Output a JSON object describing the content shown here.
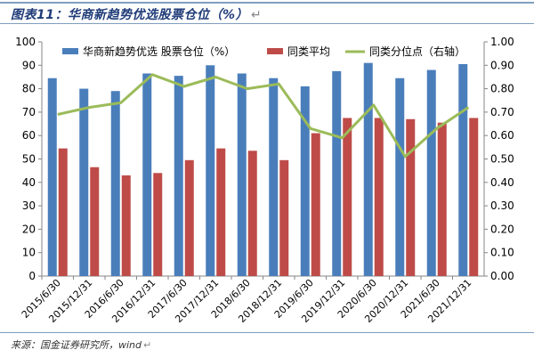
{
  "figure": {
    "title": "图表11：华商新趋势优选股票仓位（%）",
    "title_mark": "↵"
  },
  "source": {
    "text": "来源：国金证券研究所，wind",
    "mark": "↵"
  },
  "colors": {
    "bar_fund": "#4a7ebb",
    "bar_avg": "#be4b48",
    "line_pct": "#9bbb59",
    "rule": "#7f9fbf"
  },
  "chart_data": {
    "type": "bar",
    "categories": [
      "2015/6/30",
      "2015/12/31",
      "2016/6/30",
      "2016/12/31",
      "2017/6/30",
      "2017/12/31",
      "2018/6/30",
      "2018/12/31",
      "2019/6/30",
      "2019/12/31",
      "2020/6/30",
      "2020/12/31",
      "2021/6/30",
      "2021/12/31"
    ],
    "series": [
      {
        "name": "华商新趋势优选 股票仓位（%）",
        "type": "bar",
        "axis": "left",
        "color": "#4a7ebb",
        "values": [
          84.5,
          80.0,
          79.0,
          86.5,
          85.5,
          90.0,
          86.5,
          84.5,
          81.0,
          87.5,
          91.0,
          84.5,
          88.0,
          90.5
        ]
      },
      {
        "name": "同类平均",
        "type": "bar",
        "axis": "left",
        "color": "#be4b48",
        "values": [
          54.5,
          46.5,
          43.0,
          44.0,
          49.5,
          54.5,
          53.5,
          49.5,
          61.0,
          67.5,
          67.5,
          67.0,
          65.5,
          67.5
        ]
      },
      {
        "name": "同类分位点（右轴）",
        "type": "line",
        "axis": "right",
        "color": "#9bbb59",
        "values": [
          0.69,
          0.72,
          0.74,
          0.86,
          0.81,
          0.85,
          0.8,
          0.82,
          0.63,
          0.59,
          0.73,
          0.51,
          0.63,
          0.72
        ]
      }
    ],
    "y_left": {
      "min": 0,
      "max": 100,
      "ticks": [
        "0",
        "10",
        "20",
        "30",
        "40",
        "50",
        "60",
        "70",
        "80",
        "90",
        "100"
      ]
    },
    "y_right": {
      "min": 0,
      "max": 1,
      "ticks": [
        "0.00",
        "0.10",
        "0.20",
        "0.30",
        "0.40",
        "0.50",
        "0.60",
        "0.70",
        "0.80",
        "0.90",
        "1.00"
      ]
    },
    "legend": {
      "position": "top",
      "items": [
        "华商新趋势优选 股票仓位（%）",
        "同类平均",
        "同类分位点（右轴）"
      ]
    },
    "grid": false
  }
}
